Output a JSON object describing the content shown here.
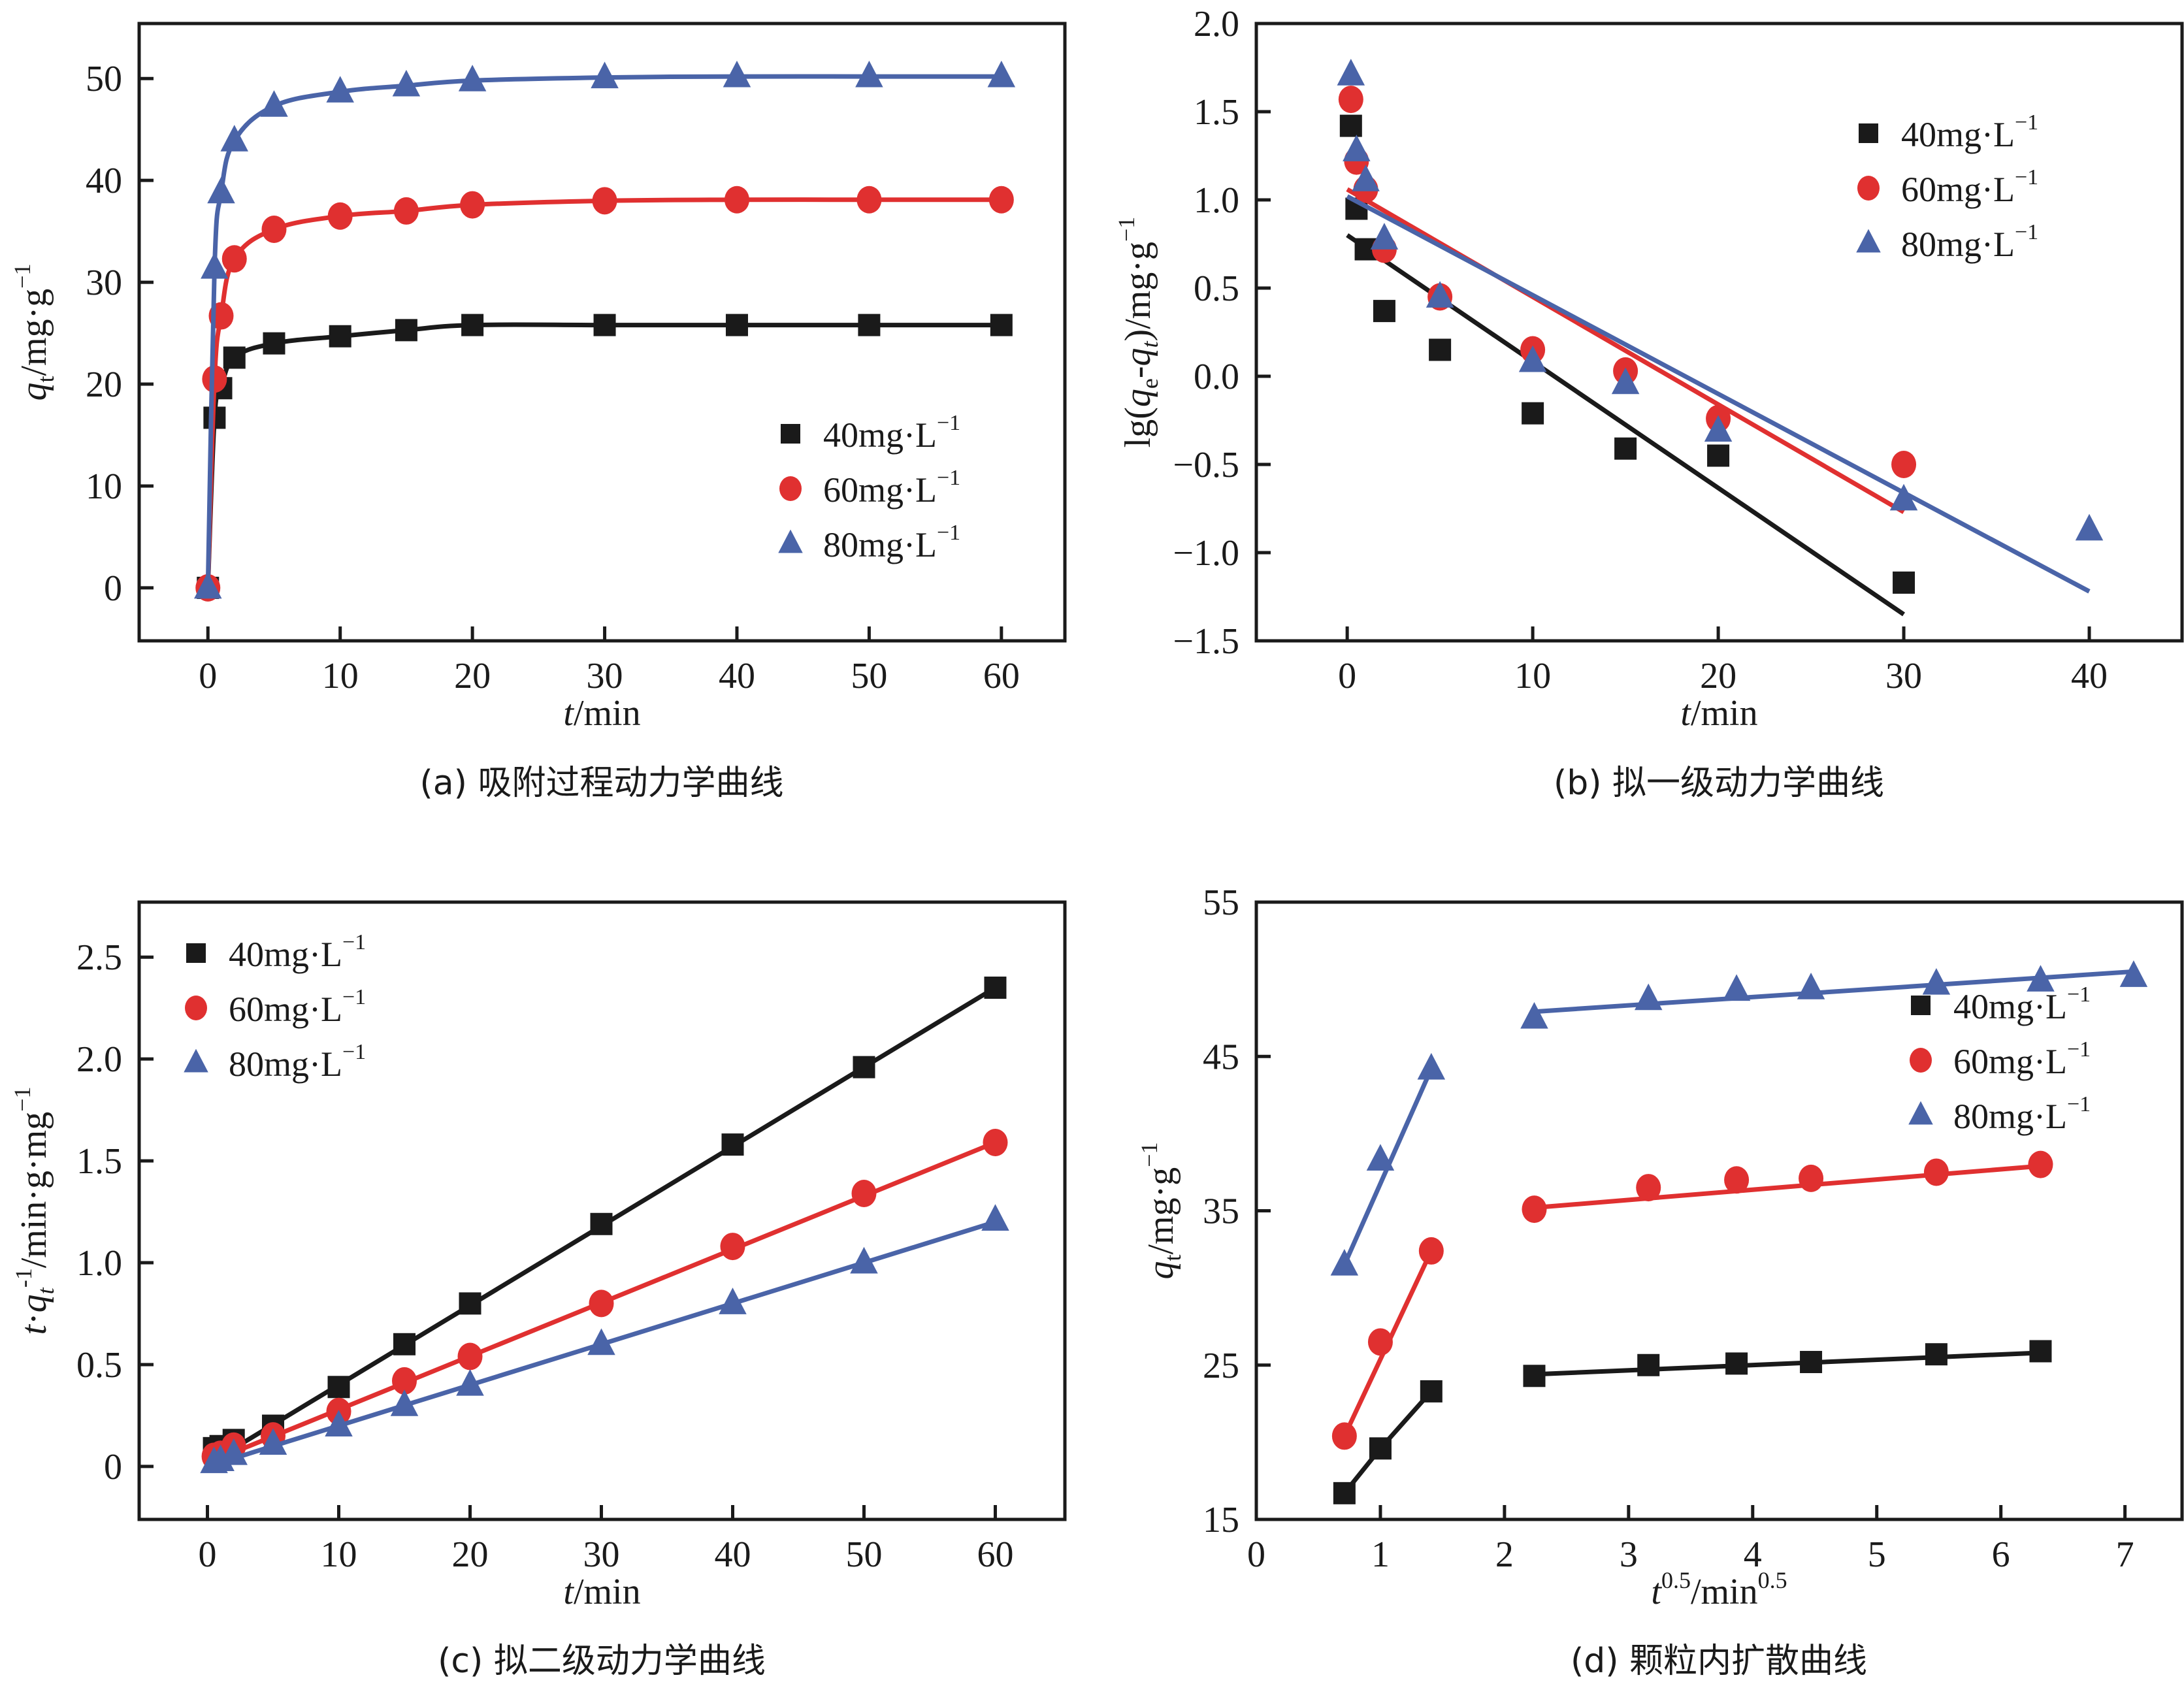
{
  "colors": {
    "c40": "#1a1a1a",
    "c60": "#e03030",
    "c80": "#4a64a8",
    "axis": "#1a1a1a"
  },
  "legend": {
    "entries": [
      {
        "key": "c40",
        "marker": "square",
        "label": "40mg·L",
        "sup": "−1"
      },
      {
        "key": "c60",
        "marker": "circle",
        "label": "60mg·L",
        "sup": "−1"
      },
      {
        "key": "c80",
        "marker": "triangle",
        "label": "80mg·L",
        "sup": "−1"
      }
    ]
  },
  "chart_data": [
    {
      "id": "a",
      "type": "line",
      "caption": "(a) 吸附过程动力学曲线",
      "xlabel": {
        "italic": "t",
        "rest": "/min"
      },
      "ylabel": {
        "italic": "q",
        "sub": "t",
        "rest": "/mg·g",
        "sup": "−1"
      },
      "xlim": [
        -5.2,
        64.8
      ],
      "ylim": [
        -5.2,
        55.4
      ],
      "xticks": [
        0,
        10,
        20,
        30,
        40,
        50,
        60
      ],
      "yticks": [
        0,
        10,
        20,
        30,
        40,
        50
      ],
      "ytick_labels": [
        "0",
        "10",
        "20",
        "30",
        "40",
        "50"
      ],
      "grid": false,
      "legend_position": "center-right",
      "series": [
        {
          "name": "40mg·L−1",
          "key": "c40",
          "marker": "square",
          "line": "smooth",
          "x": [
            0,
            0.5,
            1,
            2,
            5,
            10,
            15,
            20,
            30,
            40,
            50,
            60
          ],
          "y": [
            0,
            16.7,
            19.6,
            22.6,
            24.0,
            24.7,
            25.3,
            25.8,
            25.8,
            25.8,
            25.8,
            25.8
          ]
        },
        {
          "name": "60mg·L−1",
          "key": "c60",
          "marker": "circle",
          "line": "smooth",
          "x": [
            0,
            0.5,
            1,
            2,
            5,
            10,
            15,
            20,
            30,
            40,
            50,
            60
          ],
          "y": [
            0,
            20.5,
            26.7,
            32.3,
            35.2,
            36.5,
            37.0,
            37.6,
            38.0,
            38.1,
            38.1,
            38.1
          ]
        },
        {
          "name": "80mg·L−1",
          "key": "c80",
          "marker": "triangle",
          "line": "smooth",
          "x": [
            0,
            0.5,
            1,
            2,
            5,
            10,
            15,
            20,
            30,
            40,
            50,
            60
          ],
          "y": [
            0,
            31.4,
            38.8,
            43.9,
            47.3,
            48.7,
            49.3,
            49.8,
            50.1,
            50.2,
            50.2,
            50.2
          ]
        }
      ]
    },
    {
      "id": "b",
      "type": "scatter",
      "caption": "(b) 拟一级动力学曲线",
      "xlabel": {
        "italic": "t",
        "rest": "/min"
      },
      "ylabel": {
        "pre": "lg(",
        "italic": "q",
        "sub": "e",
        "mid": "-",
        "italic2": "q",
        "sub2": "t",
        "rest": ")/mg·g",
        "sup": "−1"
      },
      "xlim": [
        -4.9,
        45.0
      ],
      "ylim": [
        -1.5,
        2.0
      ],
      "xticks": [
        0,
        10,
        20,
        30,
        40
      ],
      "yticks": [
        -1.5,
        -1.0,
        -0.5,
        0.0,
        0.5,
        1.0,
        1.5,
        2.0
      ],
      "ytick_labels": [
        "−1.5",
        "−1.0",
        "−0.5",
        "0.0",
        "0.5",
        "1.0",
        "1.5",
        "2.0"
      ],
      "grid": false,
      "legend_position": "top-right",
      "series": [
        {
          "name": "40mg·L−1",
          "key": "c40",
          "marker": "square",
          "x": [
            0.2,
            0.5,
            1,
            2,
            5,
            10,
            15,
            20,
            30
          ],
          "y": [
            1.42,
            0.95,
            0.72,
            0.37,
            0.15,
            -0.21,
            -0.41,
            -0.45,
            -1.17
          ],
          "fit": {
            "x": [
              0,
              30
            ],
            "y": [
              0.8,
              -1.35
            ]
          }
        },
        {
          "name": "60mg·L−1",
          "key": "c60",
          "marker": "circle",
          "x": [
            0.2,
            0.5,
            1,
            2,
            5,
            10,
            15,
            20,
            30
          ],
          "y": [
            1.57,
            1.22,
            1.06,
            0.72,
            0.45,
            0.15,
            0.03,
            -0.24,
            -0.5
          ],
          "fit": {
            "x": [
              0,
              30
            ],
            "y": [
              1.06,
              -0.77
            ]
          }
        },
        {
          "name": "80mg·L−1",
          "key": "c80",
          "marker": "triangle",
          "x": [
            0.2,
            0.5,
            1,
            2,
            5,
            10,
            15,
            20,
            30,
            40
          ],
          "y": [
            1.71,
            1.28,
            1.11,
            0.78,
            0.45,
            0.085,
            -0.04,
            -0.31,
            -0.7,
            -0.87
          ],
          "fit": {
            "x": [
              0,
              40
            ],
            "y": [
              1.02,
              -1.22
            ]
          }
        }
      ]
    },
    {
      "id": "c",
      "type": "line",
      "caption": "(c) 拟二级动力学曲线",
      "xlabel": {
        "italic": "t",
        "rest": "/min"
      },
      "ylabel": {
        "italic": "t",
        "pre2": "·",
        "italic2": "q",
        "sub2": "t",
        "sup2": "-1",
        "rest": "/min·g·mg",
        "sup": "−1"
      },
      "xlim": [
        -5.2,
        65.3
      ],
      "ylim": [
        -0.26,
        2.77
      ],
      "xticks": [
        0,
        10,
        20,
        30,
        40,
        50,
        60
      ],
      "yticks": [
        0,
        0.5,
        1.0,
        1.5,
        2.0,
        2.5
      ],
      "ytick_labels": [
        "0",
        "0.5",
        "1.0",
        "1.5",
        "2.0",
        "2.5"
      ],
      "grid": false,
      "legend_position": "top-left",
      "series": [
        {
          "name": "40mg·L−1",
          "key": "c40",
          "marker": "square",
          "x": [
            0.5,
            1,
            2,
            5,
            10,
            15,
            20,
            30,
            40,
            50,
            60
          ],
          "y": [
            0.09,
            0.1,
            0.13,
            0.2,
            0.39,
            0.6,
            0.8,
            1.19,
            1.58,
            1.96,
            2.35
          ],
          "fit": {
            "x": [
              0.5,
              60
            ],
            "y": [
              0.03,
              2.35
            ]
          }
        },
        {
          "name": "60mg·L−1",
          "key": "c60",
          "marker": "circle",
          "x": [
            0.5,
            1,
            2,
            5,
            10,
            15,
            20,
            30,
            40,
            50,
            60
          ],
          "y": [
            0.05,
            0.06,
            0.1,
            0.15,
            0.27,
            0.42,
            0.54,
            0.8,
            1.08,
            1.34,
            1.59
          ],
          "fit": {
            "x": [
              0.5,
              60
            ],
            "y": [
              0.03,
              1.59
            ]
          }
        },
        {
          "name": "80mg·L−1",
          "key": "c80",
          "marker": "triangle",
          "x": [
            0.5,
            1,
            2,
            5,
            10,
            15,
            20,
            30,
            40,
            50,
            60
          ],
          "y": [
            0.02,
            0.03,
            0.06,
            0.11,
            0.2,
            0.3,
            0.4,
            0.6,
            0.8,
            1.0,
            1.21
          ],
          "fit": {
            "x": [
              0.5,
              60
            ],
            "y": [
              0.01,
              1.2
            ]
          }
        }
      ]
    },
    {
      "id": "d",
      "type": "scatter",
      "caption": "(d) 颗粒内扩散曲线",
      "xlabel": {
        "italic": "t",
        "sup": "0.5",
        "rest": "/min",
        "sup2": "0.5"
      },
      "ylabel": {
        "italic": "q",
        "sub": "t",
        "rest": "/mg·g",
        "sup": "−1"
      },
      "xlim": [
        0,
        7.46
      ],
      "ylim": [
        15,
        55
      ],
      "xticks": [
        0,
        1,
        2,
        3,
        4,
        5,
        6,
        7
      ],
      "yticks": [
        15,
        25,
        35,
        45,
        55
      ],
      "ytick_labels": [
        "15",
        "25",
        "35",
        "45",
        "55"
      ],
      "grid": false,
      "legend_position": "top-right",
      "series": [
        {
          "name": "40mg·L−1",
          "key": "c40",
          "marker": "square",
          "x": [
            0.71,
            1.0,
            1.41,
            2.24,
            3.16,
            3.87,
            4.47,
            5.48,
            6.32
          ],
          "y": [
            16.7,
            19.6,
            23.3,
            24.3,
            25.0,
            25.1,
            25.2,
            25.7,
            25.9
          ],
          "fits": [
            {
              "x": [
                0.71,
                1.0,
                1.41
              ],
              "y": [
                16.7,
                19.6,
                23.3
              ]
            },
            {
              "x": [
                2.24,
                6.32
              ],
              "y": [
                24.4,
                25.8
              ]
            }
          ]
        },
        {
          "name": "60mg·L−1",
          "key": "c60",
          "marker": "circle",
          "x": [
            0.71,
            1.0,
            1.41,
            2.24,
            3.16,
            3.87,
            4.47,
            5.48,
            6.32
          ],
          "y": [
            20.4,
            26.5,
            32.4,
            35.1,
            36.5,
            37.0,
            37.1,
            37.5,
            38.0
          ],
          "fits": [
            {
              "x": [
                0.71,
                1.41
              ],
              "y": [
                20.4,
                32.4
              ]
            },
            {
              "x": [
                2.24,
                6.32
              ],
              "y": [
                35.2,
                37.9
              ]
            }
          ]
        },
        {
          "name": "80mg·L−1",
          "key": "c80",
          "marker": "triangle",
          "x": [
            0.71,
            1.0,
            1.41,
            2.24,
            3.16,
            3.87,
            4.47,
            5.48,
            6.32,
            7.07
          ],
          "y": [
            31.5,
            38.3,
            44.2,
            47.5,
            48.7,
            49.3,
            49.4,
            49.7,
            49.9,
            50.2
          ],
          "fits": [
            {
              "x": [
                0.71,
                1.41
              ],
              "y": [
                31.5,
                44.2
              ]
            },
            {
              "x": [
                2.24,
                7.07
              ],
              "y": [
                47.9,
                50.5
              ]
            }
          ]
        }
      ]
    }
  ]
}
